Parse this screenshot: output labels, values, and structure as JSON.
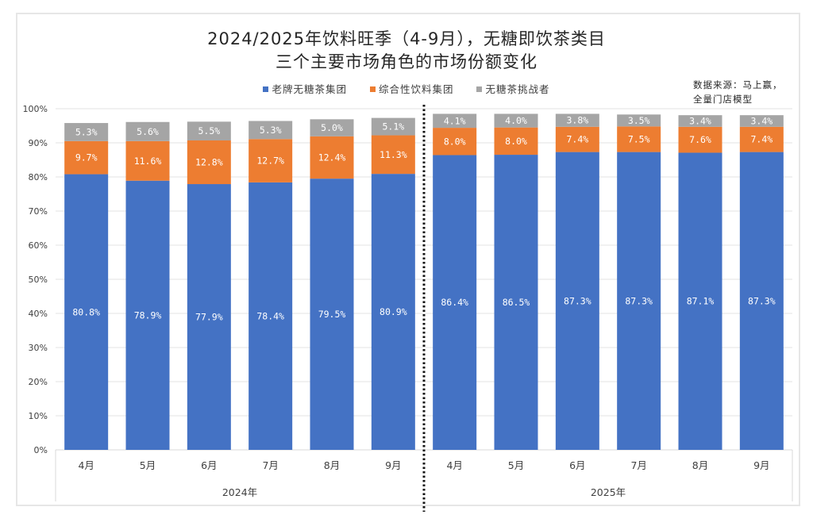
{
  "chart_data": {
    "type": "bar",
    "stacked": true,
    "title": "2024/2025年饮料旺季（4-9月），无糖即饮茶类目",
    "subtitle": "三个主要市场角色的市场份额变化",
    "source": [
      "数据来源：马上赢，",
      "全量门店模型"
    ],
    "xlabel": "",
    "ylabel": "",
    "ylim": [
      0,
      100
    ],
    "yticks": [
      "0%",
      "10%",
      "20%",
      "30%",
      "40%",
      "50%",
      "60%",
      "70%",
      "80%",
      "90%",
      "100%"
    ],
    "grid": true,
    "legend_position": "top",
    "groups": [
      {
        "label": "2024年",
        "categories": [
          "4月",
          "5月",
          "6月",
          "7月",
          "8月",
          "9月"
        ]
      },
      {
        "label": "2025年",
        "categories": [
          "4月",
          "5月",
          "6月",
          "7月",
          "8月",
          "9月"
        ]
      }
    ],
    "series": [
      {
        "name": "老牌无糖茶集团",
        "color": "#4472c4",
        "values": [
          80.8,
          78.9,
          77.9,
          78.4,
          79.5,
          80.9,
          86.4,
          86.5,
          87.3,
          87.3,
          87.1,
          87.3
        ],
        "labels": [
          "80.8%",
          "78.9%",
          "77.9%",
          "78.4%",
          "79.5%",
          "80.9%",
          "86.4%",
          "86.5%",
          "87.3%",
          "87.3%",
          "87.1%",
          "87.3%"
        ]
      },
      {
        "name": "综合性饮料集团",
        "color": "#ed7d31",
        "values": [
          9.7,
          11.6,
          12.8,
          12.7,
          12.4,
          11.3,
          8.0,
          8.0,
          7.4,
          7.5,
          7.6,
          7.4
        ],
        "labels": [
          "9.7%",
          "11.6%",
          "12.8%",
          "12.7%",
          "12.4%",
          "11.3%",
          "8.0%",
          "8.0%",
          "7.4%",
          "7.5%",
          "7.6%",
          "7.4%"
        ]
      },
      {
        "name": "无糖茶挑战者",
        "color": "#a5a5a5",
        "values": [
          5.3,
          5.6,
          5.5,
          5.3,
          5.0,
          5.1,
          4.1,
          4.0,
          3.8,
          3.5,
          3.4,
          3.4
        ],
        "labels": [
          "5.3%",
          "5.6%",
          "5.5%",
          "5.3%",
          "5.0%",
          "5.1%",
          "4.1%",
          "4.0%",
          "3.8%",
          "3.5%",
          "3.4%",
          "3.4%"
        ]
      }
    ]
  }
}
